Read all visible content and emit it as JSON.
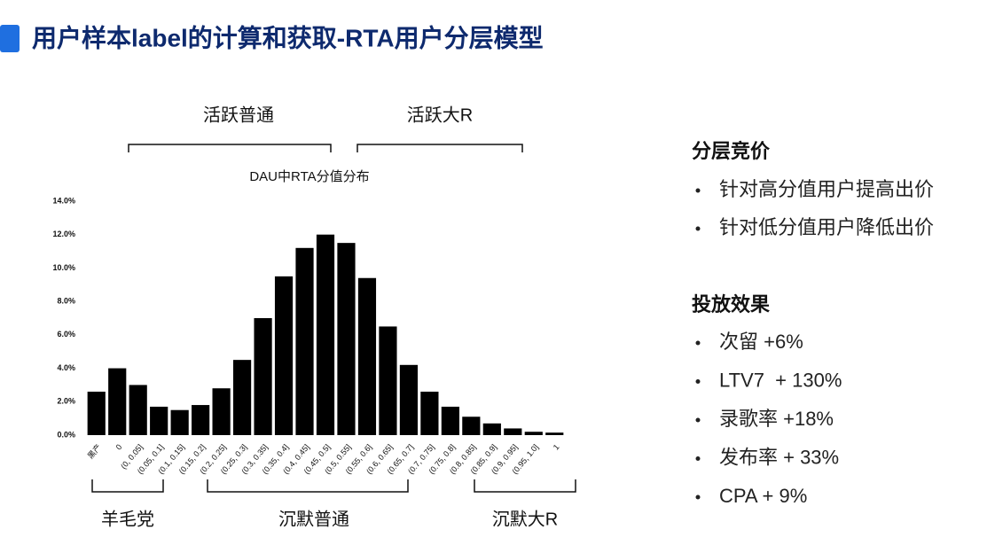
{
  "slide_title": "用户样本label的计算和获取-RTA用户分层模型",
  "chart_data": {
    "type": "bar",
    "title": "DAU中RTA分值分布",
    "categories": [
      "黑产",
      "0",
      "(0, 0.05]",
      "(0.05, 0.1]",
      "(0.1, 0.15]",
      "(0.15, 0.2]",
      "(0.2, 0.25]",
      "(0.25, 0.3]",
      "(0.3, 0.35]",
      "(0.35, 0.4]",
      "(0.4, 0.45]",
      "(0.45, 0.5]",
      "(0.5, 0.55]",
      "(0.55, 0.6]",
      "(0.6, 0.65]",
      "(0.65, 0.7]",
      "(0.7, 0.75]",
      "(0.75, 0.8]",
      "(0.8, 0.85]",
      "(0.85, 0.9]",
      "(0.9, 0.95]",
      "(0.95, 1.0]",
      "1"
    ],
    "values": [
      2.6,
      4.0,
      3.0,
      1.7,
      1.5,
      1.8,
      2.8,
      4.5,
      7.0,
      9.5,
      11.2,
      12.0,
      11.5,
      9.4,
      6.5,
      4.2,
      2.6,
      1.7,
      1.1,
      0.7,
      0.4,
      0.2,
      0.15
    ],
    "color": "#000000",
    "ylim": [
      0,
      14
    ],
    "yticks": [
      {
        "value": 0,
        "label": "0.0%"
      },
      {
        "value": 2,
        "label": "2.0%"
      },
      {
        "value": 4,
        "label": "4.0%"
      },
      {
        "value": 6,
        "label": "6.0%"
      },
      {
        "value": 8,
        "label": "8.0%"
      },
      {
        "value": 10,
        "label": "10.0%"
      },
      {
        "value": 12,
        "label": "12.0%"
      },
      {
        "value": 14,
        "label": "14.0%"
      }
    ],
    "grid": false,
    "annotations": [
      "活跃普通",
      "活跃大R",
      "羊毛党",
      "沉默普通",
      "沉默大R"
    ]
  },
  "panel": {
    "bidding": {
      "heading": "分层竞价",
      "items": [
        "针对高分值用户提高出价",
        "针对低分值用户降低出价"
      ]
    },
    "effect": {
      "heading": "投放效果",
      "items": [
        "次留 +6%",
        "LTV7  + 130%",
        "录歌率 +18%",
        "发布率 + 33%",
        "CPA + 9%"
      ]
    }
  }
}
